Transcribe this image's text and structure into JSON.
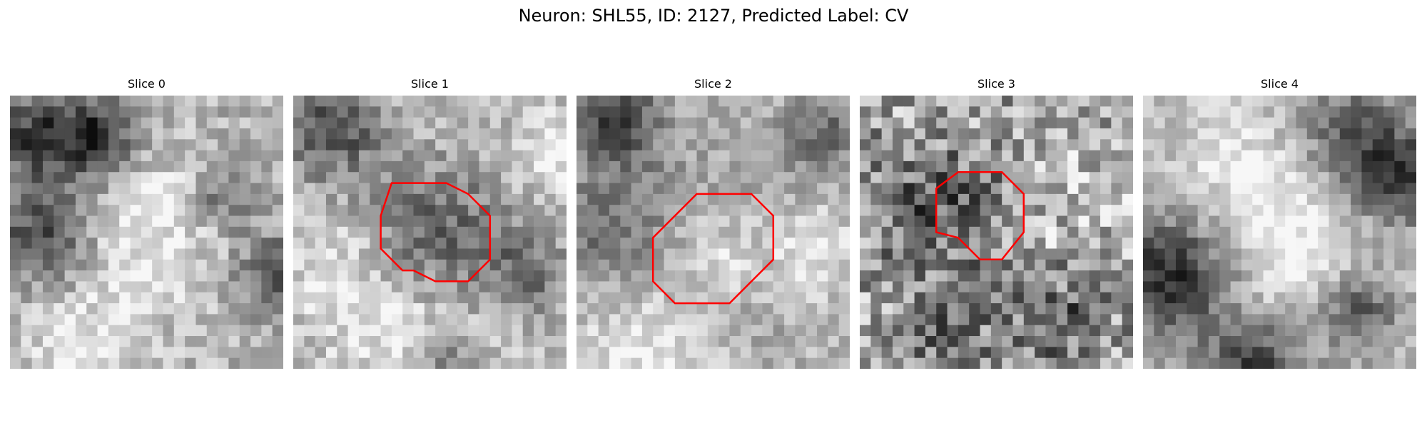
{
  "figure": {
    "title": "Neuron: SHL55, ID: 2127, Predicted Label: CV"
  },
  "panels": [
    {
      "title": "Slice 0",
      "has_contour": false
    },
    {
      "title": "Slice 1",
      "has_contour": true
    },
    {
      "title": "Slice 2",
      "has_contour": true
    },
    {
      "title": "Slice 3",
      "has_contour": true
    },
    {
      "title": "Slice 4",
      "has_contour": false
    }
  ],
  "colors": {
    "contour": "#ff0000",
    "background": "#ffffff"
  }
}
